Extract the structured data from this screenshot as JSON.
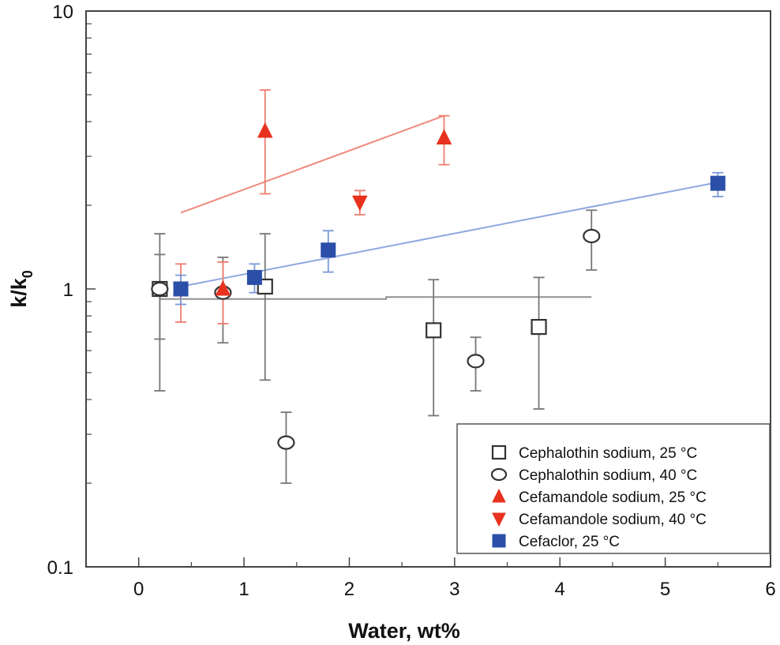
{
  "chart_data": {
    "type": "scatter",
    "xlabel": "Water, wt%",
    "ylabel": "k/k",
    "ylabel_sub": "0",
    "xlim": [
      -0.5,
      6
    ],
    "ylim": [
      0.1,
      10
    ],
    "yscale": "log",
    "grid": false,
    "legend_position": "bottom-right",
    "x_ticks": [
      0,
      1,
      2,
      3,
      4,
      5,
      6
    ],
    "x_tick_labels": [
      "0",
      "1",
      "2",
      "3",
      "4",
      "5",
      "6"
    ],
    "y_ticks": [
      0.1,
      1,
      10
    ],
    "y_tick_labels": [
      "0.1",
      "1",
      "10"
    ],
    "series": [
      {
        "name": "Cephalothin sodium, 25 °C",
        "marker": "square-open",
        "color": "#333333",
        "points": [
          {
            "x": 0.2,
            "y": 1.0,
            "ylo": 0.43,
            "yhi": 1.58
          },
          {
            "x": 1.2,
            "y": 1.02,
            "ylo": 0.47,
            "yhi": 1.58
          },
          {
            "x": 2.8,
            "y": 0.71,
            "ylo": 0.35,
            "yhi": 1.08
          },
          {
            "x": 3.8,
            "y": 0.73,
            "ylo": 0.37,
            "yhi": 1.1
          }
        ]
      },
      {
        "name": "Cephalothin sodium, 40 °C",
        "marker": "circle-open",
        "color": "#333333",
        "points": [
          {
            "x": 0.2,
            "y": 1.0,
            "ylo": 0.66,
            "yhi": 1.33
          },
          {
            "x": 0.8,
            "y": 0.97,
            "ylo": 0.64,
            "yhi": 1.3
          },
          {
            "x": 1.4,
            "y": 0.28,
            "ylo": 0.2,
            "yhi": 0.36
          },
          {
            "x": 3.2,
            "y": 0.55,
            "ylo": 0.43,
            "yhi": 0.67
          },
          {
            "x": 4.3,
            "y": 1.55,
            "ylo": 1.17,
            "yhi": 1.92
          }
        ]
      },
      {
        "name": "Cefamandole sodium, 25 °C",
        "marker": "triangle-up",
        "color": "#e8321e",
        "points": [
          {
            "x": 0.8,
            "y": 1.0,
            "ylo": 0.75,
            "yhi": 1.25
          },
          {
            "x": 1.2,
            "y": 3.7,
            "ylo": 2.2,
            "yhi": 5.2
          },
          {
            "x": 2.9,
            "y": 3.5,
            "ylo": 2.8,
            "yhi": 4.2
          }
        ]
      },
      {
        "name": "Cefamandole sodium, 40 °C",
        "marker": "triangle-down",
        "color": "#e8321e",
        "points": [
          {
            "x": 0.4,
            "y": 1.0,
            "ylo": 0.76,
            "yhi": 1.23
          },
          {
            "x": 2.1,
            "y": 2.05,
            "ylo": 1.85,
            "yhi": 2.26
          }
        ]
      },
      {
        "name": "Cefaclor, 25 °C",
        "marker": "square-filled",
        "color": "#2b4fa8",
        "points": [
          {
            "x": 0.4,
            "y": 1.0,
            "ylo": 0.88,
            "yhi": 1.12
          },
          {
            "x": 1.1,
            "y": 1.1,
            "ylo": 0.97,
            "yhi": 1.23
          },
          {
            "x": 1.8,
            "y": 1.38,
            "ylo": 1.15,
            "yhi": 1.62
          },
          {
            "x": 5.5,
            "y": 2.4,
            "ylo": 2.15,
            "yhi": 2.62
          }
        ]
      }
    ],
    "trend_lines": [
      {
        "color": "#f08a7e",
        "points": [
          [
            0.4,
            1.88
          ],
          [
            2.9,
            4.2
          ]
        ]
      },
      {
        "color": "#8fa8e0",
        "points": [
          [
            0.4,
            1.02
          ],
          [
            5.5,
            2.42
          ]
        ]
      },
      {
        "color": "#909090",
        "points": [
          [
            0.2,
            0.92
          ],
          [
            2.35,
            0.92
          ],
          [
            2.35,
            0.935
          ],
          [
            4.3,
            0.935
          ]
        ]
      }
    ]
  }
}
